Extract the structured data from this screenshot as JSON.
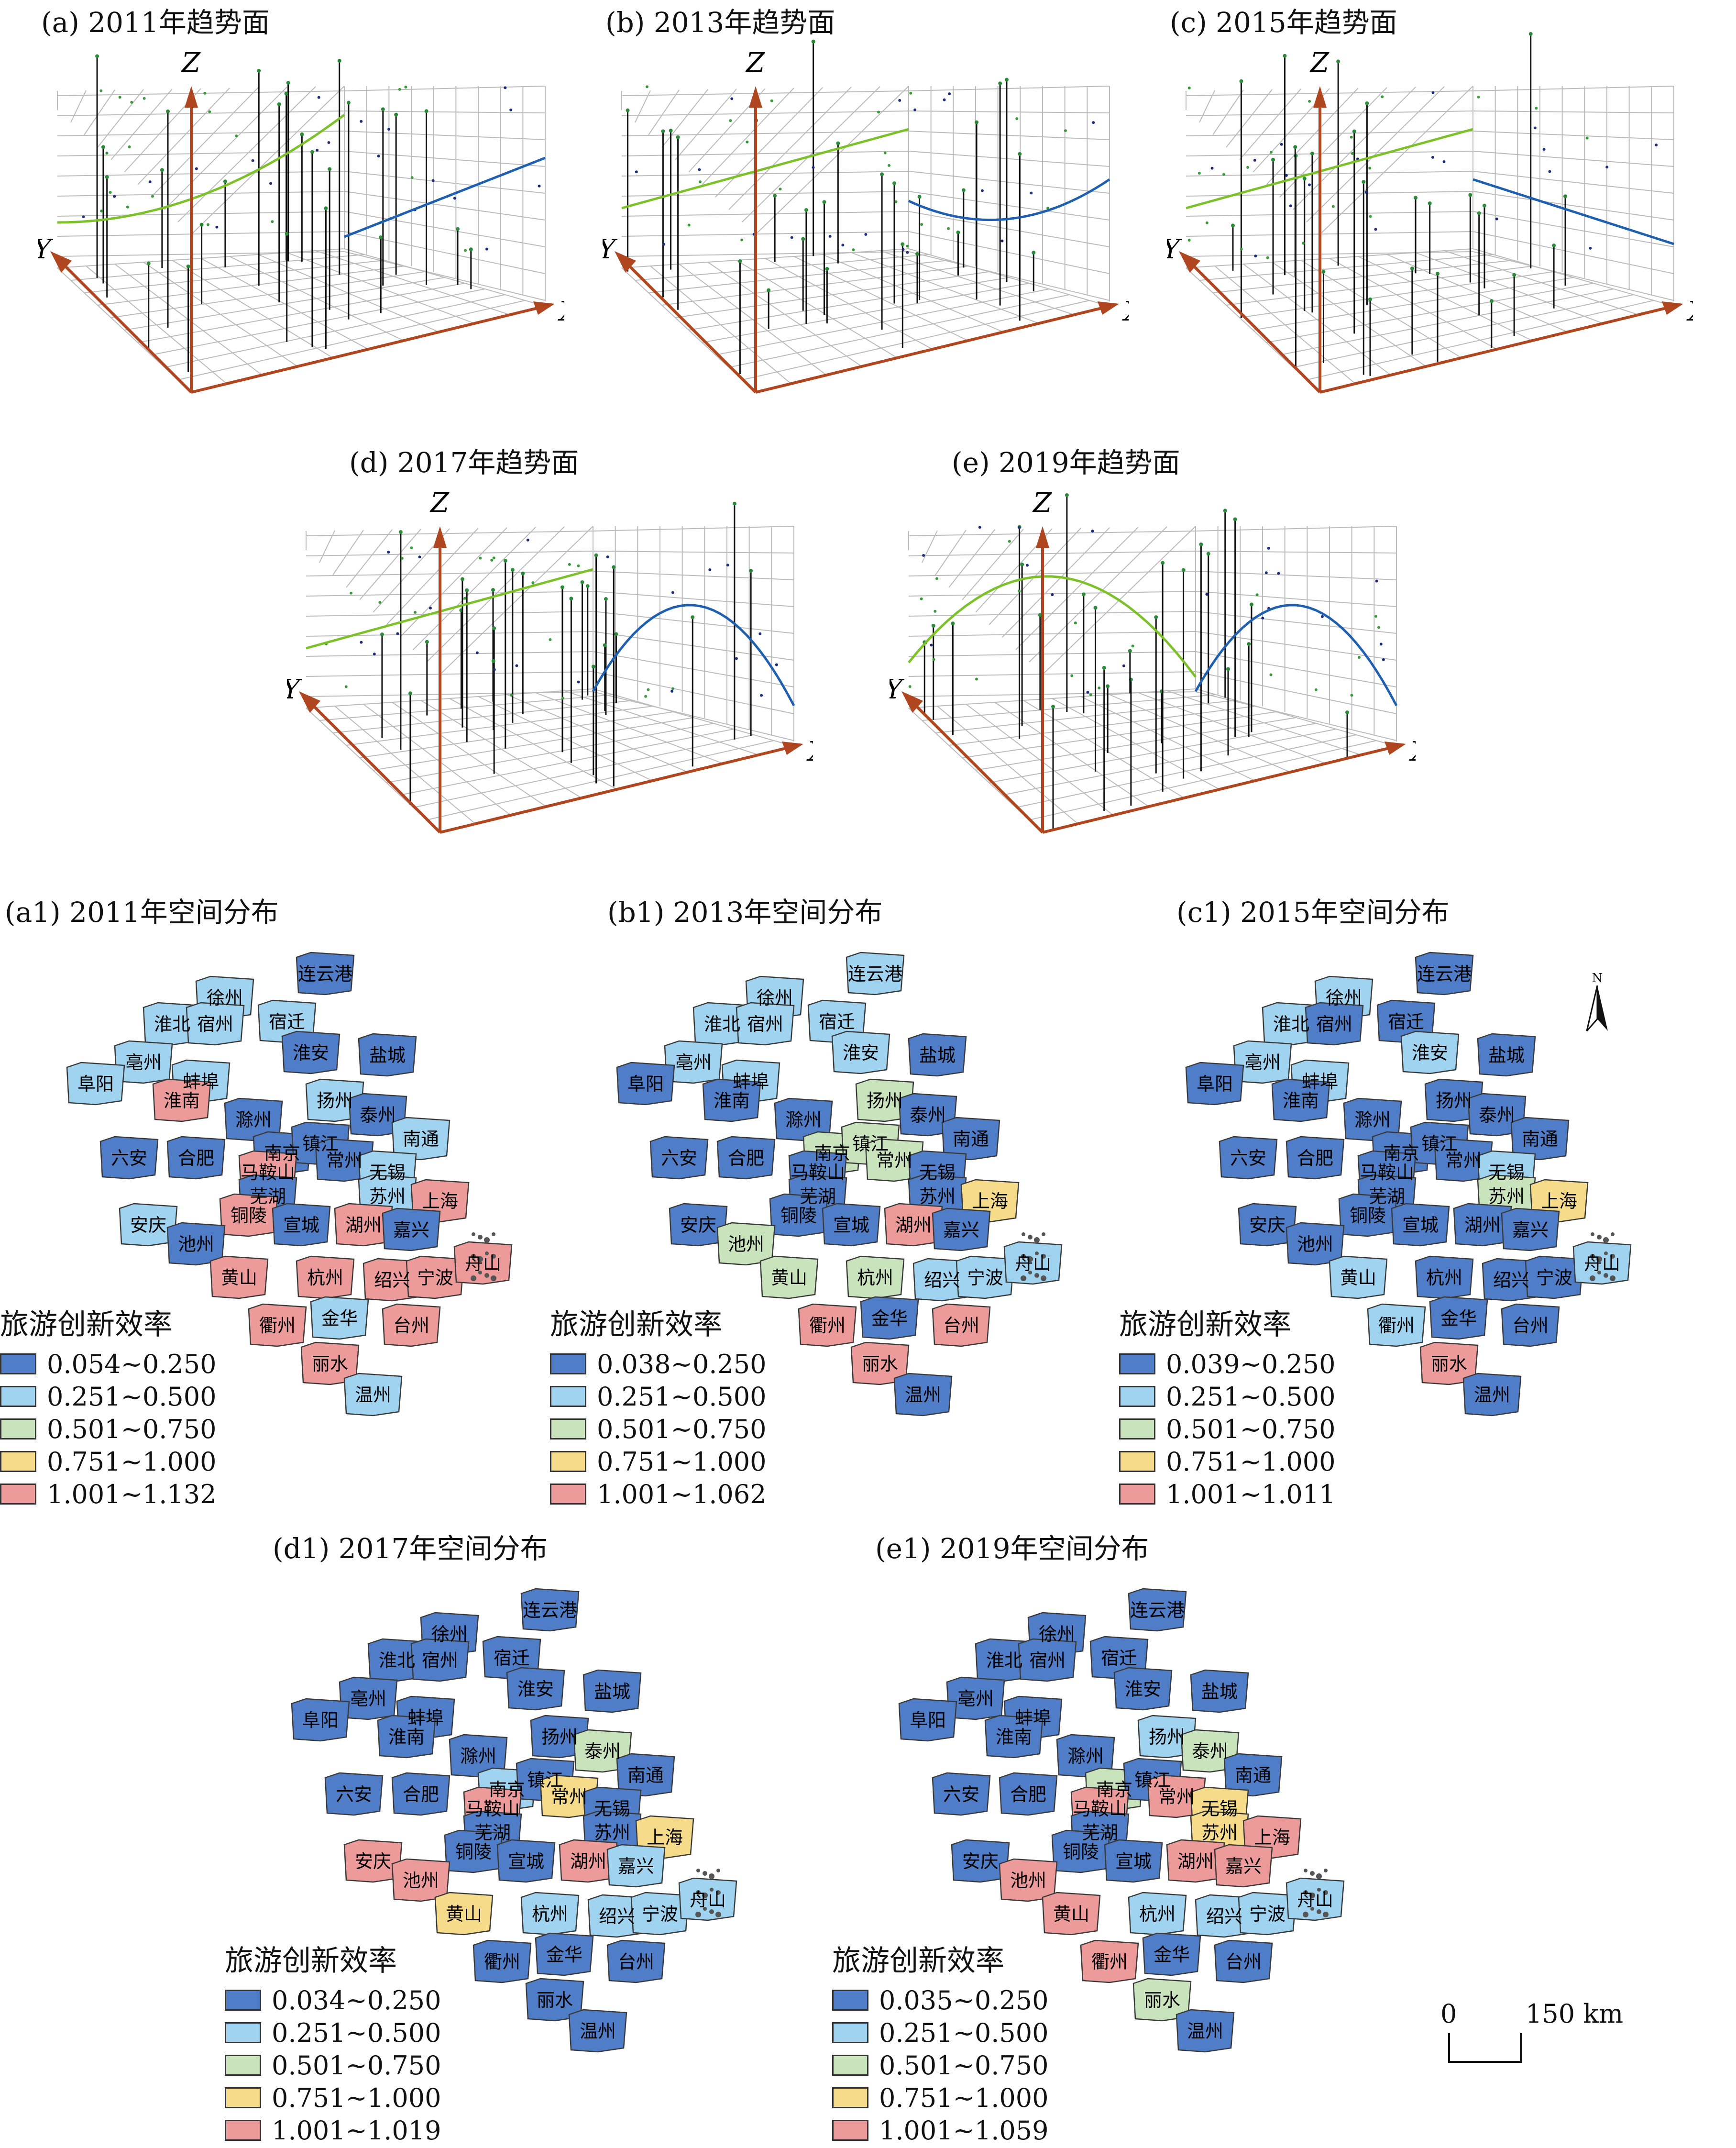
{
  "colors": {
    "c1": "#4f7dc7",
    "c2": "#9fd3ef",
    "c3": "#c9e4bc",
    "c4": "#f6dc8a",
    "c5": "#ec9a9a",
    "trend_green": "#7cc12a",
    "trend_blue": "#1f5fb0",
    "axis": "#b0461f"
  },
  "axes": {
    "x": "X",
    "y": "Y",
    "z": "Z"
  },
  "trend_panels": [
    {
      "id": "a",
      "title": "(a) 2011年趋势面",
      "green_shape": "up",
      "blue_shape": "rising"
    },
    {
      "id": "b",
      "title": "(b) 2013年趋势面",
      "green_shape": "rising",
      "blue_shape": "bowl"
    },
    {
      "id": "c",
      "title": "(c) 2015年趋势面",
      "green_shape": "rising",
      "blue_shape": "falling"
    },
    {
      "id": "d",
      "title": "(d) 2017年趋势面",
      "green_shape": "rising",
      "blue_shape": "arch"
    },
    {
      "id": "e",
      "title": "(e) 2019年趋势面",
      "green_shape": "arch",
      "blue_shape": "arch"
    }
  ],
  "map_panels": [
    {
      "id": "a1",
      "title": "(a1) 2011年空间分布",
      "legend_title": "旅游创新效率",
      "ranges": [
        "0.054~0.250",
        "0.251~0.500",
        "0.501~0.750",
        "0.751~1.000",
        "1.001~1.132"
      ],
      "classes": {
        "连云港": 1,
        "徐州": 2,
        "宿迁": 2,
        "淮北": 2,
        "宿州": 2,
        "淮安": 1,
        "盐城": 1,
        "亳州": 2,
        "阜阳": 2,
        "蚌埠": 2,
        "淮南": 5,
        "扬州": 2,
        "泰州": 1,
        "滁州": 1,
        "南通": 2,
        "六安": 1,
        "合肥": 1,
        "南京": 1,
        "镇江": 1,
        "常州": 1,
        "马鞍山": 5,
        "无锡": 2,
        "苏州": 2,
        "上海": 5,
        "芜湖": 1,
        "铜陵": 5,
        "安庆": 2,
        "池州": 1,
        "宣城": 1,
        "湖州": 5,
        "嘉兴": 1,
        "黄山": 5,
        "杭州": 5,
        "绍兴": 5,
        "宁波": 5,
        "舟山": 5,
        "衢州": 5,
        "金华": 2,
        "台州": 5,
        "丽水": 5,
        "温州": 2
      }
    },
    {
      "id": "b1",
      "title": "(b1) 2013年空间分布",
      "legend_title": "旅游创新效率",
      "ranges": [
        "0.038~0.250",
        "0.251~0.500",
        "0.501~0.750",
        "0.751~1.000",
        "1.001~1.062"
      ],
      "classes": {
        "连云港": 2,
        "徐州": 2,
        "宿迁": 2,
        "淮北": 2,
        "宿州": 2,
        "淮安": 2,
        "盐城": 1,
        "亳州": 2,
        "阜阳": 1,
        "蚌埠": 2,
        "淮南": 1,
        "扬州": 3,
        "泰州": 1,
        "滁州": 1,
        "南通": 1,
        "六安": 1,
        "合肥": 1,
        "南京": 3,
        "镇江": 3,
        "常州": 3,
        "马鞍山": 1,
        "无锡": 1,
        "苏州": 1,
        "上海": 4,
        "芜湖": 1,
        "铜陵": 1,
        "安庆": 1,
        "池州": 3,
        "宣城": 1,
        "湖州": 5,
        "嘉兴": 1,
        "黄山": 3,
        "杭州": 3,
        "绍兴": 2,
        "宁波": 2,
        "舟山": 2,
        "衢州": 5,
        "金华": 1,
        "台州": 5,
        "丽水": 5,
        "温州": 1
      }
    },
    {
      "id": "c1",
      "title": "(c1) 2015年空间分布",
      "legend_title": "旅游创新效率",
      "ranges": [
        "0.039~0.250",
        "0.251~0.500",
        "0.501~0.750",
        "0.751~1.000",
        "1.001~1.011"
      ],
      "classes": {
        "连云港": 1,
        "徐州": 2,
        "宿迁": 1,
        "淮北": 2,
        "宿州": 1,
        "淮安": 2,
        "盐城": 1,
        "亳州": 2,
        "阜阳": 1,
        "蚌埠": 2,
        "淮南": 1,
        "扬州": 1,
        "泰州": 1,
        "滁州": 1,
        "南通": 1,
        "六安": 1,
        "合肥": 1,
        "南京": 1,
        "镇江": 1,
        "常州": 1,
        "马鞍山": 1,
        "无锡": 2,
        "苏州": 3,
        "上海": 4,
        "芜湖": 1,
        "铜陵": 1,
        "安庆": 1,
        "池州": 1,
        "宣城": 1,
        "湖州": 1,
        "嘉兴": 1,
        "黄山": 2,
        "杭州": 1,
        "绍兴": 1,
        "宁波": 1,
        "舟山": 2,
        "衢州": 2,
        "金华": 1,
        "台州": 1,
        "丽水": 5,
        "温州": 1
      }
    },
    {
      "id": "d1",
      "title": "(d1) 2017年空间分布",
      "legend_title": "旅游创新效率",
      "ranges": [
        "0.034~0.250",
        "0.251~0.500",
        "0.501~0.750",
        "0.751~1.000",
        "1.001~1.019"
      ],
      "classes": {
        "连云港": 1,
        "徐州": 1,
        "宿迁": 1,
        "淮北": 1,
        "宿州": 1,
        "淮安": 1,
        "盐城": 1,
        "亳州": 1,
        "阜阳": 1,
        "蚌埠": 1,
        "淮南": 1,
        "扬州": 1,
        "泰州": 3,
        "滁州": 1,
        "南通": 1,
        "六安": 1,
        "合肥": 1,
        "南京": 2,
        "镇江": 1,
        "常州": 4,
        "马鞍山": 5,
        "无锡": 1,
        "苏州": 1,
        "上海": 4,
        "芜湖": 1,
        "铜陵": 1,
        "安庆": 5,
        "池州": 5,
        "宣城": 1,
        "湖州": 5,
        "嘉兴": 2,
        "黄山": 4,
        "杭州": 2,
        "绍兴": 2,
        "宁波": 2,
        "舟山": 2,
        "衢州": 1,
        "金华": 1,
        "台州": 1,
        "丽水": 1,
        "温州": 1
      }
    },
    {
      "id": "e1",
      "title": "(e1) 2019年空间分布",
      "legend_title": "旅游创新效率",
      "ranges": [
        "0.035~0.250",
        "0.251~0.500",
        "0.501~0.750",
        "0.751~1.000",
        "1.001~1.059"
      ],
      "classes": {
        "连云港": 1,
        "徐州": 1,
        "宿迁": 1,
        "淮北": 1,
        "宿州": 1,
        "淮安": 1,
        "盐城": 1,
        "亳州": 1,
        "阜阳": 1,
        "蚌埠": 1,
        "淮南": 1,
        "扬州": 2,
        "泰州": 3,
        "滁州": 1,
        "南通": 1,
        "六安": 1,
        "合肥": 1,
        "南京": 3,
        "镇江": 1,
        "常州": 5,
        "马鞍山": 5,
        "无锡": 4,
        "苏州": 4,
        "上海": 5,
        "芜湖": 1,
        "铜陵": 1,
        "安庆": 1,
        "池州": 5,
        "宣城": 1,
        "湖州": 5,
        "嘉兴": 5,
        "黄山": 5,
        "杭州": 2,
        "绍兴": 2,
        "宁波": 2,
        "舟山": 2,
        "衢州": 5,
        "金华": 1,
        "台州": 1,
        "丽水": 3,
        "温州": 1
      }
    }
  ],
  "north_label": "N",
  "scale": {
    "zero": "0",
    "value": "150 km"
  }
}
